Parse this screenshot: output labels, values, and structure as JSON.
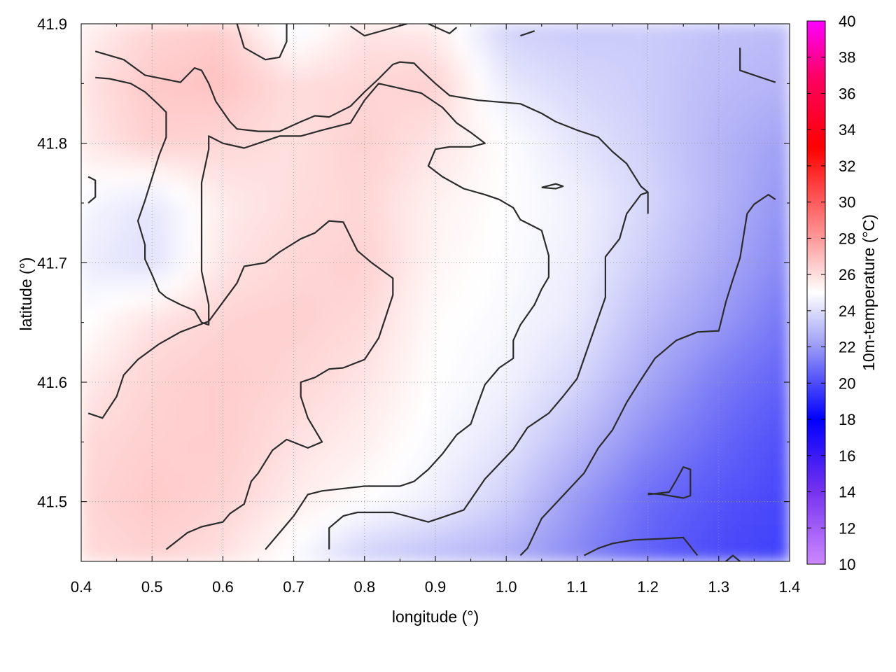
{
  "chart_data": {
    "type": "heatmap",
    "title": "",
    "xlabel": "longitude (°)",
    "ylabel": "latitude (°)",
    "colorbar_label": "10m-temperature (°C)",
    "xlim": [
      0.4,
      1.4
    ],
    "ylim": [
      41.45,
      41.9
    ],
    "x_ticks": [
      0.4,
      0.5,
      0.6,
      0.7,
      0.8,
      0.9,
      1.0,
      1.1,
      1.2,
      1.3,
      1.4
    ],
    "x_tick_labels": [
      "0.4",
      "0.5",
      "0.6",
      "0.7",
      "0.8",
      "0.9",
      "1.0",
      "1.1",
      "1.2",
      "1.3",
      "1.4"
    ],
    "y_ticks": [
      41.5,
      41.6,
      41.7,
      41.8,
      41.9
    ],
    "y_tick_labels": [
      "41.5",
      "41.6",
      "41.7",
      "41.8",
      "41.9"
    ],
    "colorbar_ticks": [
      10,
      12,
      14,
      16,
      18,
      20,
      22,
      24,
      26,
      28,
      30,
      32,
      34,
      36,
      38,
      40
    ],
    "colorbar_tick_labels": [
      "10",
      "12",
      "14",
      "16",
      "18",
      "20",
      "22",
      "24",
      "26",
      "28",
      "30",
      "32",
      "34",
      "36",
      "38",
      "40"
    ],
    "color_range": [
      10,
      40
    ],
    "colormap_stops": [
      {
        "value": 10,
        "color": "#cc88ff"
      },
      {
        "value": 14,
        "color": "#7733ee"
      },
      {
        "value": 18,
        "color": "#0000ff"
      },
      {
        "value": 22,
        "color": "#9999f5"
      },
      {
        "value": 25,
        "color": "#ffffff"
      },
      {
        "value": 28,
        "color": "#ff9999"
      },
      {
        "value": 33,
        "color": "#ff0000"
      },
      {
        "value": 37,
        "color": "#ff0066"
      },
      {
        "value": 40,
        "color": "#ff00ff"
      }
    ],
    "grid": true,
    "field_grid": {
      "lon": [
        0.4,
        0.5,
        0.6,
        0.7,
        0.8,
        0.9,
        1.0,
        1.1,
        1.2,
        1.3,
        1.4
      ],
      "lat": [
        41.9,
        41.85,
        41.8,
        41.75,
        41.7,
        41.65,
        41.6,
        41.55,
        41.5,
        41.45
      ],
      "temperature": [
        [
          25.3,
          26.2,
          26.5,
          24.5,
          25.8,
          25.5,
          23.6,
          23.4,
          23.5,
          23.2,
          23.0
        ],
        [
          25.8,
          26.6,
          26.8,
          26.0,
          26.2,
          26.4,
          24.3,
          23.8,
          23.5,
          23.0,
          22.8
        ],
        [
          25.6,
          26.4,
          26.2,
          25.9,
          26.4,
          25.8,
          25.0,
          24.2,
          23.6,
          22.8,
          22.2
        ],
        [
          24.8,
          24.2,
          25.6,
          26.0,
          26.2,
          25.4,
          25.0,
          24.6,
          23.8,
          22.8,
          21.8
        ],
        [
          24.5,
          24.0,
          25.8,
          26.2,
          26.4,
          25.3,
          24.9,
          24.5,
          23.5,
          22.5,
          21.5
        ],
        [
          24.9,
          25.9,
          26.3,
          26.4,
          26.1,
          25.1,
          24.8,
          24.3,
          23.0,
          22.0,
          21.0
        ],
        [
          25.6,
          26.3,
          26.5,
          26.2,
          25.8,
          25.0,
          24.6,
          23.8,
          22.4,
          21.2,
          20.5
        ],
        [
          26.1,
          26.4,
          26.5,
          25.9,
          25.5,
          24.8,
          24.2,
          23.0,
          21.6,
          20.7,
          20.0
        ],
        [
          26.2,
          26.6,
          26.3,
          25.6,
          25.0,
          24.5,
          23.6,
          22.0,
          20.8,
          20.2,
          19.8
        ],
        [
          26.0,
          26.3,
          25.9,
          24.8,
          23.5,
          23.0,
          22.5,
          21.5,
          20.5,
          19.9,
          19.6
        ]
      ]
    },
    "contour_lines": [
      [
        [
          0.42,
          41.877
        ],
        [
          0.46,
          41.87
        ],
        [
          0.49,
          41.857
        ],
        [
          0.54,
          41.851
        ],
        [
          0.55,
          41.857
        ],
        [
          0.56,
          41.863
        ],
        [
          0.57,
          41.861
        ],
        [
          0.58,
          41.85
        ],
        [
          0.59,
          41.835
        ],
        [
          0.61,
          41.818
        ],
        [
          0.62,
          41.812
        ],
        [
          0.65,
          41.81
        ],
        [
          0.68,
          41.81
        ],
        [
          0.71,
          41.818
        ],
        [
          0.73,
          41.823
        ],
        [
          0.75,
          41.822
        ],
        [
          0.78,
          41.831
        ],
        [
          0.8,
          41.843
        ],
        [
          0.82,
          41.854
        ],
        [
          0.84,
          41.866
        ],
        [
          0.85,
          41.868
        ],
        [
          0.87,
          41.867
        ],
        [
          0.88,
          41.861
        ],
        [
          0.9,
          41.85
        ],
        [
          0.92,
          41.84
        ],
        [
          0.96,
          41.836
        ],
        [
          1.02,
          41.833
        ],
        [
          1.05,
          41.825
        ],
        [
          1.07,
          41.818
        ],
        [
          1.1,
          41.811
        ],
        [
          1.13,
          41.805
        ],
        [
          1.15,
          41.793
        ],
        [
          1.17,
          41.783
        ],
        [
          1.19,
          41.764
        ],
        [
          1.2,
          41.759
        ],
        [
          1.2,
          41.741
        ]
      ],
      [
        [
          0.42,
          41.855
        ],
        [
          0.44,
          41.854
        ],
        [
          0.47,
          41.85
        ],
        [
          0.49,
          41.843
        ],
        [
          0.51,
          41.832
        ],
        [
          0.52,
          41.826
        ],
        [
          0.52,
          41.805
        ],
        [
          0.51,
          41.79
        ],
        [
          0.49,
          41.752
        ],
        [
          0.48,
          41.735
        ],
        [
          0.49,
          41.715
        ],
        [
          0.49,
          41.703
        ],
        [
          0.5,
          41.69
        ],
        [
          0.51,
          41.676
        ],
        [
          0.52,
          41.671
        ],
        [
          0.54,
          41.665
        ],
        [
          0.56,
          41.66
        ],
        [
          0.57,
          41.65
        ],
        [
          0.58,
          41.648
        ],
        [
          0.58,
          41.665
        ],
        [
          0.57,
          41.693
        ],
        [
          0.57,
          41.714
        ],
        [
          0.57,
          41.735
        ],
        [
          0.57,
          41.767
        ],
        [
          0.58,
          41.795
        ],
        [
          0.58,
          41.806
        ],
        [
          0.6,
          41.8
        ],
        [
          0.63,
          41.796
        ],
        [
          0.66,
          41.802
        ],
        [
          0.68,
          41.806
        ],
        [
          0.71,
          41.806
        ],
        [
          0.74,
          41.811
        ],
        [
          0.78,
          41.817
        ],
        [
          0.8,
          41.836
        ],
        [
          0.82,
          41.85
        ],
        [
          0.85,
          41.846
        ],
        [
          0.88,
          41.842
        ],
        [
          0.91,
          41.83
        ],
        [
          0.93,
          41.817
        ],
        [
          0.95,
          41.809
        ],
        [
          0.97,
          41.8
        ],
        [
          0.95,
          41.797
        ],
        [
          0.92,
          41.797
        ],
        [
          0.9,
          41.795
        ],
        [
          0.89,
          41.781
        ],
        [
          0.91,
          41.772
        ],
        [
          0.94,
          41.762
        ],
        [
          0.97,
          41.757
        ],
        [
          0.99,
          41.753
        ],
        [
          1.01,
          41.746
        ],
        [
          1.02,
          41.736
        ],
        [
          1.04,
          41.73
        ],
        [
          1.05,
          41.727
        ],
        [
          1.06,
          41.706
        ],
        [
          1.06,
          41.688
        ],
        [
          1.05,
          41.678
        ],
        [
          1.04,
          41.665
        ],
        [
          1.02,
          41.648
        ],
        [
          1.01,
          41.635
        ],
        [
          1.01,
          41.62
        ],
        [
          0.99,
          41.612
        ],
        [
          0.97,
          41.598
        ],
        [
          0.96,
          41.582
        ],
        [
          0.95,
          41.565
        ],
        [
          0.93,
          41.556
        ],
        [
          0.91,
          41.54
        ],
        [
          0.89,
          41.527
        ],
        [
          0.87,
          41.517
        ],
        [
          0.85,
          41.513
        ],
        [
          0.8,
          41.513
        ],
        [
          0.74,
          41.509
        ],
        [
          0.72,
          41.506
        ],
        [
          0.7,
          41.488
        ],
        [
          0.68,
          41.474
        ],
        [
          0.66,
          41.46
        ]
      ],
      [
        [
          0.41,
          41.574
        ],
        [
          0.43,
          41.57
        ],
        [
          0.45,
          41.588
        ],
        [
          0.46,
          41.606
        ],
        [
          0.48,
          41.619
        ],
        [
          0.51,
          41.632
        ],
        [
          0.54,
          41.642
        ],
        [
          0.58,
          41.651
        ],
        [
          0.6,
          41.667
        ],
        [
          0.62,
          41.683
        ],
        [
          0.63,
          41.697
        ],
        [
          0.66,
          41.7
        ],
        [
          0.68,
          41.709
        ],
        [
          0.71,
          41.72
        ],
        [
          0.73,
          41.725
        ],
        [
          0.75,
          41.735
        ],
        [
          0.77,
          41.734
        ],
        [
          0.79,
          41.71
        ],
        [
          0.81,
          41.7
        ],
        [
          0.84,
          41.687
        ],
        [
          0.84,
          41.673
        ],
        [
          0.83,
          41.655
        ],
        [
          0.82,
          41.637
        ],
        [
          0.8,
          41.619
        ],
        [
          0.77,
          41.612
        ],
        [
          0.75,
          41.611
        ],
        [
          0.73,
          41.604
        ],
        [
          0.71,
          41.6
        ],
        [
          0.71,
          41.588
        ],
        [
          0.72,
          41.57
        ],
        [
          0.74,
          41.55
        ],
        [
          0.72,
          41.545
        ],
        [
          0.69,
          41.552
        ],
        [
          0.67,
          41.543
        ],
        [
          0.65,
          41.524
        ],
        [
          0.64,
          41.517
        ],
        [
          0.63,
          41.498
        ],
        [
          0.61,
          41.49
        ],
        [
          0.6,
          41.483
        ],
        [
          0.57,
          41.479
        ],
        [
          0.55,
          41.474
        ],
        [
          0.52,
          41.46
        ]
      ],
      [
        [
          0.75,
          41.46
        ],
        [
          0.75,
          41.478
        ],
        [
          0.77,
          41.488
        ],
        [
          0.79,
          41.491
        ],
        [
          0.84,
          41.491
        ],
        [
          0.89,
          41.483
        ],
        [
          0.91,
          41.487
        ],
        [
          0.94,
          41.493
        ],
        [
          0.97,
          41.519
        ],
        [
          1.01,
          41.544
        ],
        [
          1.03,
          41.562
        ],
        [
          1.06,
          41.574
        ],
        [
          1.08,
          41.588
        ],
        [
          1.1,
          41.603
        ],
        [
          1.12,
          41.637
        ],
        [
          1.14,
          41.671
        ],
        [
          1.14,
          41.705
        ],
        [
          1.16,
          41.72
        ],
        [
          1.17,
          41.741
        ],
        [
          1.19,
          41.757
        ],
        [
          1.2,
          41.759
        ]
      ],
      [
        [
          1.02,
          41.455
        ],
        [
          1.03,
          41.461
        ],
        [
          1.05,
          41.486
        ],
        [
          1.08,
          41.505
        ],
        [
          1.11,
          41.524
        ],
        [
          1.13,
          41.545
        ],
        [
          1.15,
          41.56
        ],
        [
          1.17,
          41.583
        ],
        [
          1.19,
          41.602
        ],
        [
          1.21,
          41.62
        ],
        [
          1.24,
          41.635
        ],
        [
          1.27,
          41.642
        ],
        [
          1.3,
          41.643
        ],
        [
          1.31,
          41.667
        ],
        [
          1.32,
          41.686
        ],
        [
          1.33,
          41.704
        ],
        [
          1.34,
          41.741
        ],
        [
          1.35,
          41.749
        ],
        [
          1.37,
          41.757
        ],
        [
          1.38,
          41.753
        ]
      ],
      [
        [
          1.11,
          41.455
        ],
        [
          1.13,
          41.461
        ],
        [
          1.15,
          41.465
        ],
        [
          1.18,
          41.468
        ],
        [
          1.22,
          41.469
        ],
        [
          1.25,
          41.47
        ],
        [
          1.27,
          41.455
        ]
      ],
      [
        [
          1.2,
          41.507
        ],
        [
          1.22,
          41.506
        ],
        [
          1.25,
          41.503
        ],
        [
          1.26,
          41.505
        ],
        [
          1.26,
          41.527
        ],
        [
          1.25,
          41.529
        ],
        [
          1.24,
          41.518
        ],
        [
          1.23,
          41.508
        ],
        [
          1.2,
          41.506
        ]
      ],
      [
        [
          1.05,
          41.763
        ],
        [
          1.07,
          41.766
        ],
        [
          1.08,
          41.764
        ],
        [
          1.07,
          41.762
        ],
        [
          1.05,
          41.763
        ]
      ],
      [
        [
          0.62,
          41.9
        ],
        [
          0.63,
          41.88
        ],
        [
          0.66,
          41.87
        ],
        [
          0.68,
          41.872
        ],
        [
          0.69,
          41.885
        ],
        [
          0.69,
          41.9
        ]
      ],
      [
        [
          0.78,
          41.898
        ],
        [
          0.8,
          41.89
        ],
        [
          0.83,
          41.895
        ],
        [
          0.86,
          41.9
        ]
      ],
      [
        [
          0.89,
          41.9
        ],
        [
          0.92,
          41.892
        ],
        [
          0.93,
          41.897
        ]
      ],
      [
        [
          1.02,
          41.89
        ],
        [
          1.04,
          41.894
        ]
      ],
      [
        [
          1.33,
          41.88
        ],
        [
          1.33,
          41.861
        ],
        [
          1.36,
          41.855
        ],
        [
          1.38,
          41.851
        ]
      ],
      [
        [
          0.41,
          41.772
        ],
        [
          0.42,
          41.769
        ],
        [
          0.42,
          41.755
        ],
        [
          0.41,
          41.75
        ]
      ],
      [
        [
          1.31,
          41.45
        ],
        [
          1.32,
          41.455
        ],
        [
          1.33,
          41.45
        ]
      ]
    ]
  }
}
